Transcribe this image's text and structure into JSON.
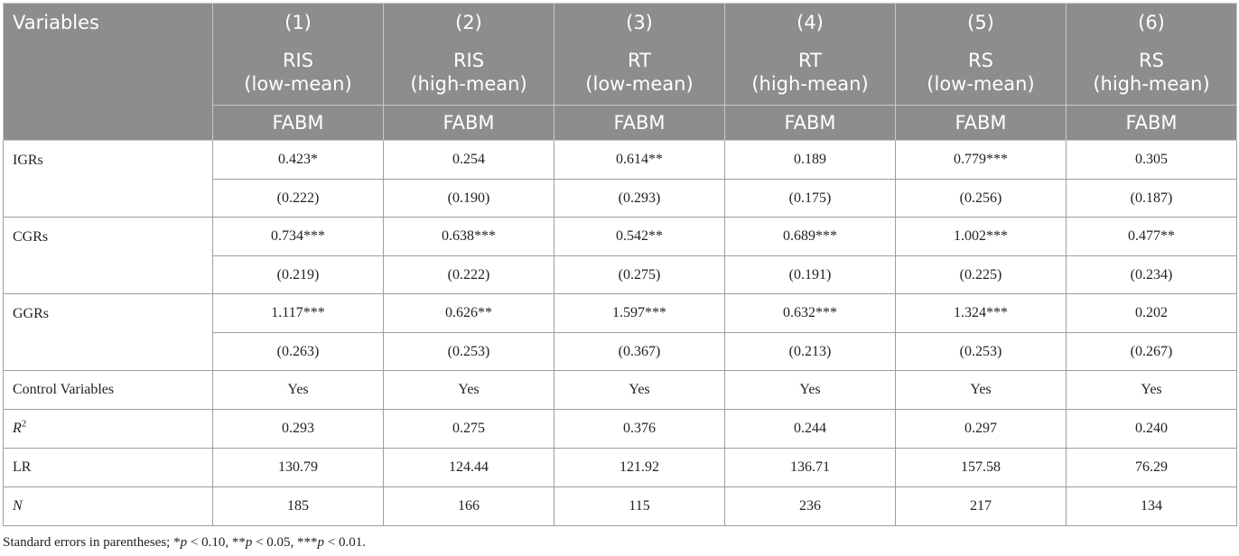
{
  "table": {
    "variables_header": "Variables",
    "columns": [
      {
        "num": "(1)",
        "dep_line1": "RIS",
        "dep_line2": "(low-mean)",
        "model": "FABM"
      },
      {
        "num": "(2)",
        "dep_line1": "RIS",
        "dep_line2": "(high-mean)",
        "model": "FABM"
      },
      {
        "num": "(3)",
        "dep_line1": "RT",
        "dep_line2": "(low-mean)",
        "model": "FABM"
      },
      {
        "num": "(4)",
        "dep_line1": "RT",
        "dep_line2": "(high-mean)",
        "model": "FABM"
      },
      {
        "num": "(5)",
        "dep_line1": "RS",
        "dep_line2": "(low-mean)",
        "model": "FABM"
      },
      {
        "num": "(6)",
        "dep_line1": "RS",
        "dep_line2": "(high-mean)",
        "model": "FABM"
      }
    ],
    "variables": [
      {
        "label": "IGRs",
        "coef": [
          "0.423*",
          "0.254",
          "0.614**",
          "0.189",
          "0.779***",
          "0.305"
        ],
        "se": [
          "(0.222)",
          "(0.190)",
          "(0.293)",
          "(0.175)",
          "(0.256)",
          "(0.187)"
        ]
      },
      {
        "label": "CGRs",
        "coef": [
          "0.734***",
          "0.638***",
          "0.542**",
          "0.689***",
          "1.002***",
          "0.477**"
        ],
        "se": [
          "(0.219)",
          "(0.222)",
          "(0.275)",
          "(0.191)",
          "(0.225)",
          "(0.234)"
        ]
      },
      {
        "label": "GGRs",
        "coef": [
          "1.117***",
          "0.626**",
          "1.597***",
          "0.632***",
          "1.324***",
          "0.202"
        ],
        "se": [
          "(0.263)",
          "(0.253)",
          "(0.367)",
          "(0.213)",
          "(0.253)",
          "(0.267)"
        ]
      }
    ],
    "stats": [
      {
        "label": "Control Variables",
        "values": [
          "Yes",
          "Yes",
          "Yes",
          "Yes",
          "Yes",
          "Yes"
        ]
      },
      {
        "label": "R",
        "label_sup": "2",
        "values": [
          "0.293",
          "0.275",
          "0.376",
          "0.244",
          "0.297",
          "0.240"
        ]
      },
      {
        "label": "LR",
        "values": [
          "130.79",
          "124.44",
          "121.92",
          "136.71",
          "157.58",
          "76.29"
        ]
      },
      {
        "label": "N",
        "values": [
          "185",
          "166",
          "115",
          "236",
          "217",
          "134"
        ]
      }
    ]
  },
  "footnote": {
    "text1": "Standard errors in parentheses; *",
    "p1": "p",
    "text2": " < 0.10, **",
    "p2": "p",
    "text3": " < 0.05, ***",
    "p3": "p",
    "text4": " < 0.01."
  }
}
